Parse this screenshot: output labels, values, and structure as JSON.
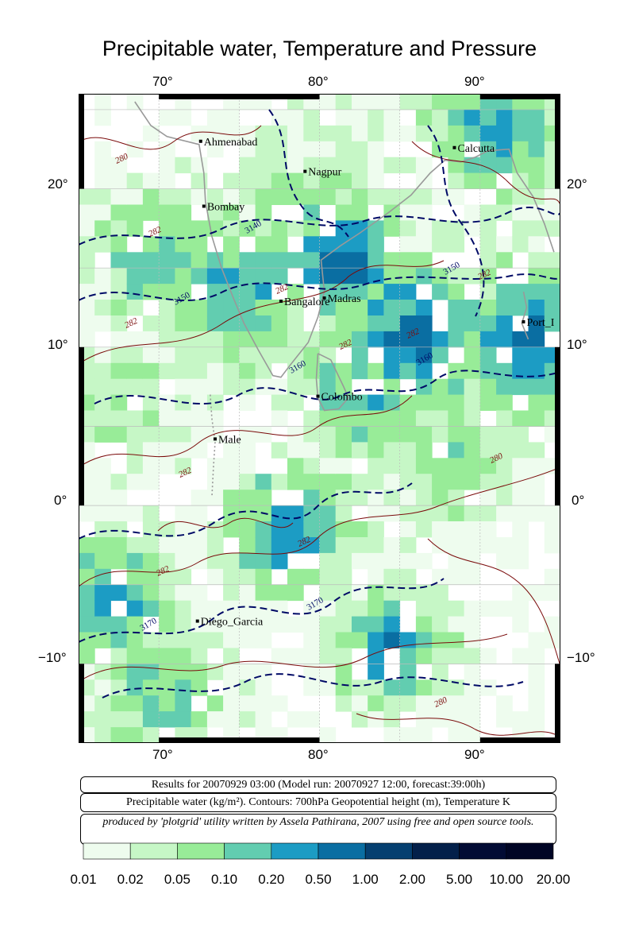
{
  "title": "Precipitable water, Temperature and Pressure",
  "map": {
    "lon_labels": [
      "70°",
      "80°",
      "90°"
    ],
    "lat_labels_left": [
      "20°",
      "10°",
      "0°",
      "−10°"
    ],
    "lat_labels_right": [
      "20°",
      "10°",
      "0°",
      "−10°"
    ],
    "cities": [
      {
        "name": "Ahmenabad",
        "lon": 72.6,
        "lat": 23.0
      },
      {
        "name": "Nagpur",
        "lon": 79.1,
        "lat": 21.1
      },
      {
        "name": "Calcutta",
        "lon": 88.4,
        "lat": 22.6
      },
      {
        "name": "Bombay",
        "lon": 72.8,
        "lat": 18.9
      },
      {
        "name": "Bangalore",
        "lon": 77.6,
        "lat": 12.9
      },
      {
        "name": "Madras",
        "lon": 80.3,
        "lat": 13.1
      },
      {
        "name": "Port Blair",
        "display": "Port_I",
        "lon": 92.7,
        "lat": 11.6
      },
      {
        "name": "Colombo",
        "lon": 79.9,
        "lat": 6.9
      },
      {
        "name": "Male",
        "lon": 73.5,
        "lat": 4.2
      },
      {
        "name": "Diego_Garcia",
        "lon": 72.4,
        "lat": -7.3
      }
    ],
    "contour_labels": {
      "height": [
        "3140",
        "3150",
        "3150",
        "3160",
        "3160",
        "3170",
        "3170"
      ],
      "temperature": [
        "280",
        "282",
        "282",
        "282",
        "282",
        "282",
        "282",
        "282",
        "280",
        "282",
        "282",
        "280"
      ]
    },
    "colors": {
      "temperature_contour": "#7a0a0a",
      "height_contour": "#000a66",
      "coastline": "#999999"
    }
  },
  "info": {
    "results_line": "Results for 20070929 03:00 (Model run: 20070927 12:00, forecast:39:00h)",
    "legend_line": "Precipitable water (kg/m²).  Contours: 700hPa Geopotential height (m), Temperature K",
    "credit_line": "produced by 'plotgrid' utility written by Assela Pathirana, 2007 using free and open source tools."
  },
  "colorbar": {
    "labels": [
      "0.01",
      "0.02",
      "0.05",
      "0.10",
      "0.20",
      "0.50",
      "1.00",
      "2.00",
      "5.00",
      "10.00",
      "20.00"
    ],
    "colors": [
      "#eefcee",
      "#c6f7c6",
      "#98ec98",
      "#62cdb0",
      "#1c9cc4",
      "#0a6ea2",
      "#053f70",
      "#03204a",
      "#020b34",
      "#000525"
    ]
  }
}
